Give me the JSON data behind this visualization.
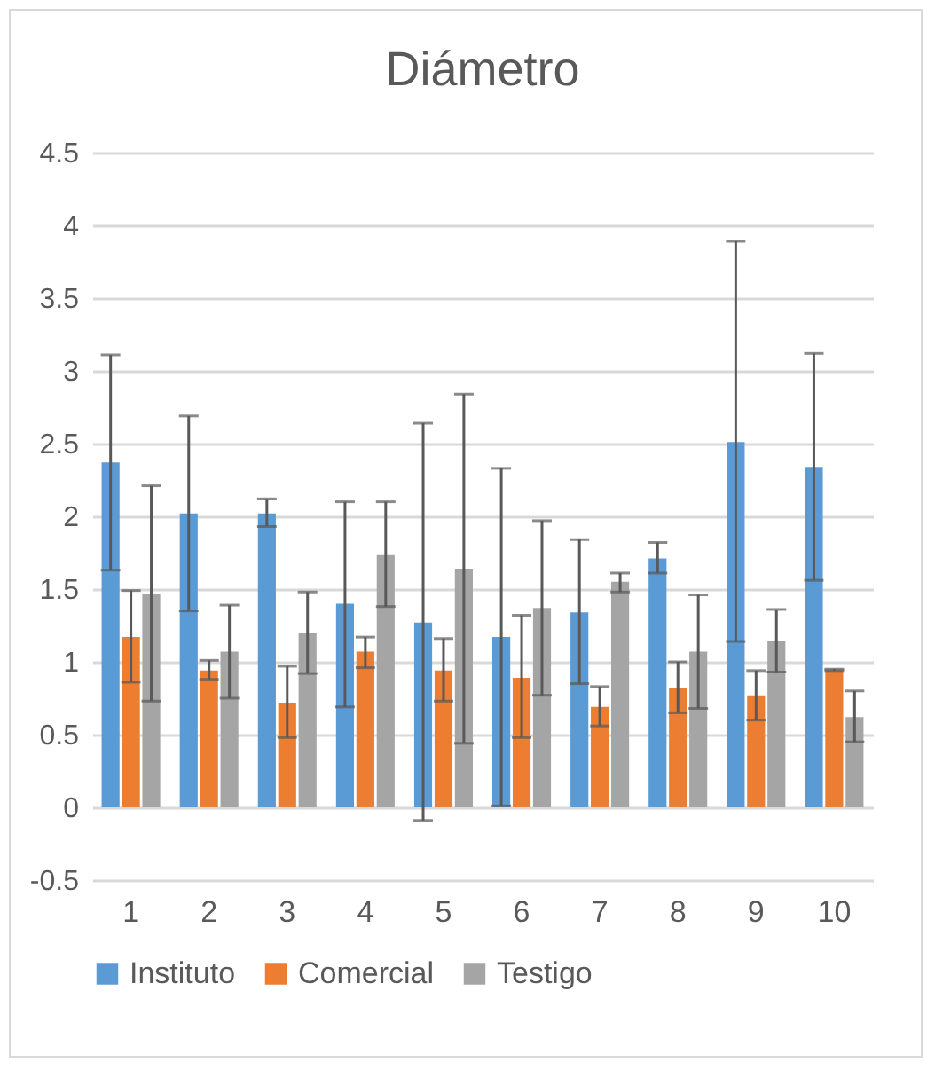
{
  "chart_data": {
    "type": "bar",
    "title": "Diámetro",
    "categories": [
      "1",
      "2",
      "3",
      "4",
      "5",
      "6",
      "7",
      "8",
      "9",
      "10"
    ],
    "ylim": [
      -0.5,
      4.5
    ],
    "yticks": [
      -0.5,
      0,
      0.5,
      1,
      1.5,
      2,
      2.5,
      3,
      3.5,
      4,
      4.5
    ],
    "grid": "y",
    "legend": "bottom",
    "series": [
      {
        "name": "Instituto",
        "color": "#5b9bd5",
        "values": [
          2.37,
          2.02,
          2.02,
          1.4,
          1.27,
          1.17,
          1.34,
          1.71,
          2.51,
          2.34
        ],
        "errors": [
          [
            1.63,
            3.11
          ],
          [
            1.35,
            2.69
          ],
          [
            1.93,
            2.12
          ],
          [
            0.69,
            2.1
          ],
          [
            -0.09,
            2.64
          ],
          [
            0.01,
            2.33
          ],
          [
            0.85,
            1.84
          ],
          [
            1.61,
            1.82
          ],
          [
            1.14,
            3.89
          ],
          [
            1.56,
            3.12
          ]
        ]
      },
      {
        "name": "Comercial",
        "color": "#ed7d31",
        "values": [
          1.17,
          0.94,
          0.72,
          1.07,
          0.94,
          0.89,
          0.69,
          0.82,
          0.77,
          0.94
        ],
        "errors": [
          [
            0.86,
            1.49
          ],
          [
            0.88,
            1.01
          ],
          [
            0.48,
            0.97
          ],
          [
            0.96,
            1.17
          ],
          [
            0.73,
            1.16
          ],
          [
            0.48,
            1.32
          ],
          [
            0.56,
            0.83
          ],
          [
            0.65,
            1.0
          ],
          [
            0.6,
            0.94
          ],
          [
            0.94,
            0.95
          ]
        ]
      },
      {
        "name": "Testigo",
        "color": "#a5a5a5",
        "values": [
          1.47,
          1.07,
          1.2,
          1.74,
          1.64,
          1.37,
          1.55,
          1.07,
          1.14,
          0.62
        ],
        "errors": [
          [
            0.73,
            2.21
          ],
          [
            0.75,
            1.39
          ],
          [
            0.92,
            1.48
          ],
          [
            1.38,
            2.1
          ],
          [
            0.44,
            2.84
          ],
          [
            0.77,
            1.97
          ],
          [
            1.48,
            1.61
          ],
          [
            0.68,
            1.46
          ],
          [
            0.93,
            1.36
          ],
          [
            0.45,
            0.8
          ]
        ]
      }
    ]
  }
}
